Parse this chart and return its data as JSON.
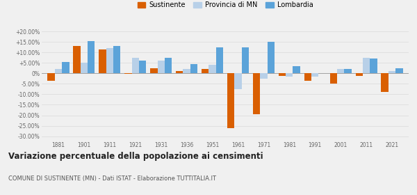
{
  "years": [
    1881,
    1901,
    1911,
    1921,
    1931,
    1936,
    1951,
    1961,
    1971,
    1981,
    1991,
    2001,
    2011,
    2021
  ],
  "sustinente": [
    -3.5,
    13.0,
    11.5,
    -0.2,
    2.5,
    1.2,
    2.0,
    -26.0,
    -19.5,
    -1.2,
    -3.5,
    -4.8,
    -1.2,
    -9.0
  ],
  "provincia_mn": [
    2.0,
    5.0,
    12.0,
    7.5,
    6.0,
    2.0,
    4.0,
    -7.5,
    -2.5,
    -1.5,
    -1.5,
    2.0,
    7.5,
    1.0
  ],
  "lombardia": [
    5.5,
    15.5,
    13.0,
    6.0,
    7.5,
    4.5,
    12.5,
    12.5,
    15.0,
    3.5,
    0.0,
    2.0,
    7.0,
    2.5
  ],
  "color_sustinente": "#d95f02",
  "color_provincia": "#b8d0e8",
  "color_lombardia": "#5ba3d9",
  "title": "Variazione percentuale della popolazione ai censimenti",
  "subtitle": "COMUNE DI SUSTINENTE (MN) - Dati ISTAT - Elaborazione TUTTITALIA.IT",
  "legend_labels": [
    "Sustinente",
    "Provincia di MN",
    "Lombardia"
  ],
  "ylim": [
    -32,
    22
  ],
  "yticks": [
    -30.0,
    -25.0,
    -20.0,
    -15.0,
    -10.0,
    -5.0,
    0.0,
    5.0,
    10.0,
    15.0,
    20.0
  ],
  "bg_color": "#f0f0f0",
  "grid_color": "#dddddd"
}
